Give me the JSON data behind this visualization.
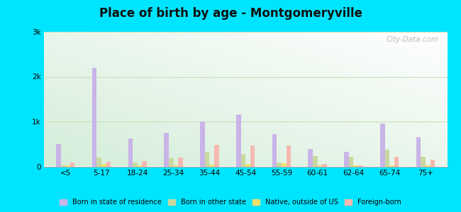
{
  "title": "Place of birth by age - Montgomeryville",
  "categories": [
    "<5",
    "5-17",
    "18-24",
    "25-34",
    "35-44",
    "45-54",
    "55-59",
    "60-61",
    "62-64",
    "65-74",
    "75+"
  ],
  "series": {
    "Born in state of residence": [
      500,
      2200,
      620,
      750,
      1000,
      1150,
      720,
      380,
      320,
      950,
      650
    ],
    "Born in other state": [
      30,
      200,
      80,
      180,
      320,
      280,
      80,
      230,
      220,
      370,
      220
    ],
    "Native, outside of US": [
      20,
      50,
      30,
      30,
      40,
      50,
      70,
      30,
      20,
      30,
      30
    ],
    "Foreign-born": [
      80,
      100,
      120,
      200,
      480,
      460,
      460,
      60,
      30,
      220,
      150
    ]
  },
  "colors": {
    "Born in state of residence": "#c9b4e8",
    "Born in other state": "#c8d8a0",
    "Native, outside of US": "#f0e070",
    "Foreign-born": "#f5b8b0"
  },
  "ylim": [
    0,
    3000
  ],
  "yticks": [
    0,
    1000,
    2000,
    3000
  ],
  "ytick_labels": [
    "0",
    "1k",
    "2k",
    "3k"
  ],
  "outer_background": "#00e5ff",
  "grid_color": "#c8e0b8",
  "watermark": "City-Data.com"
}
